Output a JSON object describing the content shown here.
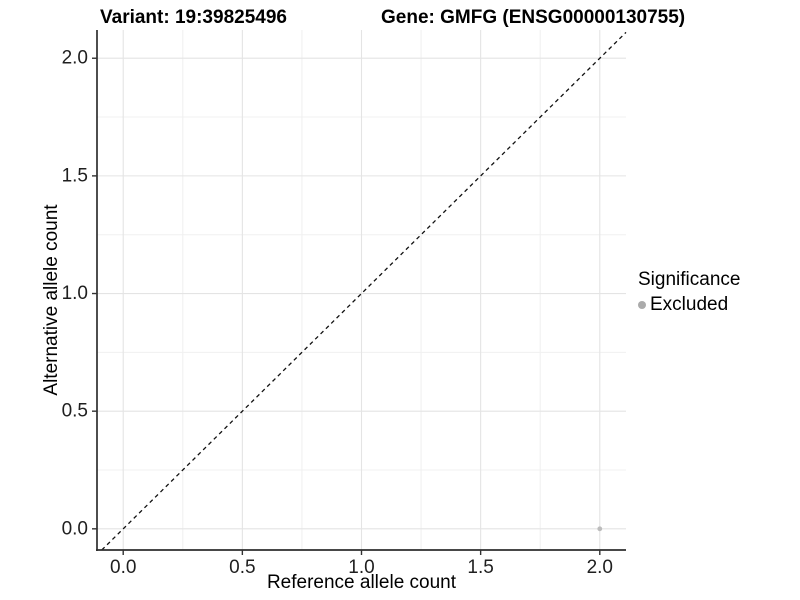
{
  "figure": {
    "background": "#FFFFFF"
  },
  "chart_data": {
    "type": "scatter",
    "title_left": "Variant: 19:39825496",
    "title_right": "Gene: GMFG (ENSG00000130755)",
    "xlabel": "Reference allele count",
    "ylabel": "Alternative allele count",
    "xlim": [
      -0.11,
      2.11
    ],
    "ylim": [
      -0.09,
      2.12
    ],
    "x_ticks": [
      0,
      0.5,
      1,
      1.5,
      2
    ],
    "y_ticks": [
      0,
      0.5,
      1,
      1.5,
      2
    ],
    "x_minor_ticks": [
      0.25,
      0.75,
      1.25,
      1.75
    ],
    "y_minor_ticks": [
      0.25,
      0.75,
      1.25,
      1.75
    ],
    "tick_decimals": 1,
    "grid": true,
    "reference_line": {
      "type": "identity",
      "slope": 1,
      "intercept": 0,
      "style": "dashed"
    },
    "series": [
      {
        "name": "Excluded",
        "color": "#BCBCBC",
        "points": [
          {
            "x": 2,
            "y": 0
          }
        ]
      }
    ],
    "legend": {
      "title": "Significance",
      "position": "right",
      "items": [
        {
          "label": "Excluded",
          "color": "#ABABAB"
        }
      ]
    },
    "colors": {
      "grid_major": "#E4E4E4",
      "grid_minor": "#F0F0F0",
      "axis_line": "#2E2E2E",
      "tick_mark": "#333333",
      "tick_text": "#1F1F1F",
      "reference_line": "#111111",
      "title_text": "#000000"
    }
  }
}
